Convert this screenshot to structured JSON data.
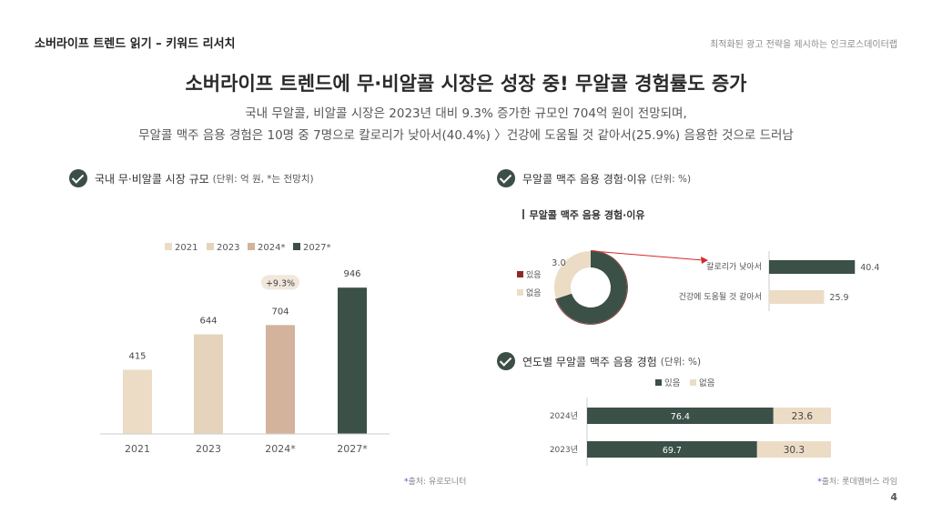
{
  "header": {
    "left_title": "소버라이프 트렌드 읽기 – 키워드 리서치",
    "right_title": "최적화된 광고 전략을 제시하는 인크로스데이터랩"
  },
  "main": {
    "title": "소버라이프 트렌드에 무·비알콜 시장은 성장 중! 무알콜 경험률도 증가",
    "subtitle_line1": "국내 무알콜, 비알콜 시장은 2023년 대비 9.3% 증가한 규모인 704억 원이 전망되며,",
    "subtitle_line2": "무알콜 맥주 음용 경험은 10명 중 7명으로 칼로리가 낮아서(40.4%) 〉건강에 도움될 것 같아서(25.9%) 음용한 것으로 드러남"
  },
  "sections": {
    "market": {
      "title": "국내 무·비알콜 시장 규모",
      "unit": "(단위: 억 원, *는 전망치)",
      "source_star": "*",
      "source": "출처: 유로모니터"
    },
    "reason": {
      "title": "무알콜 맥주 음용 경험·이유",
      "unit": "(단위: %)",
      "inner_title": "무알콜 맥주 음용 경험·이유"
    },
    "yearly": {
      "title": "연도별 무알콜 맥주 음용 경험",
      "unit": "(단위: %)",
      "source_star": "*",
      "source": "출처: 롯데멤버스 라임"
    }
  },
  "page_number": "4",
  "colors": {
    "dark_green": "#3b5047",
    "light_beige": "#ecdcc6",
    "mid_beige": "#e5d3bb",
    "tan": "#d3b39c",
    "maroon": "#8b2a2a",
    "arrow_red": "#d62828",
    "badge_bg": "#f1e7db"
  },
  "chart_data": [
    {
      "type": "bar",
      "categories": [
        "2021",
        "2023",
        "2024*",
        "2027*"
      ],
      "values": [
        415,
        644,
        704,
        946
      ],
      "legend": [
        "2021",
        "2023",
        "2024*",
        "2027*"
      ],
      "legend_placement": "top",
      "annotation": "+9.3%",
      "ylim": [
        0,
        1000
      ],
      "grid": false
    },
    {
      "type": "pie",
      "labels": [
        "있음",
        "없음"
      ],
      "values": [
        7.0,
        3.0
      ],
      "legend_placement": "left"
    },
    {
      "type": "bar",
      "orientation": "horizontal",
      "categories": [
        "칼로리가 낮아서",
        "건강에 도움될 것 같아서"
      ],
      "values": [
        40.4,
        25.9
      ],
      "xlim": [
        0,
        45
      ]
    },
    {
      "type": "bar",
      "orientation": "horizontal",
      "stacked": true,
      "categories": [
        "2024년",
        "2023년"
      ],
      "series": [
        {
          "name": "있음",
          "values": [
            76.4,
            69.7
          ]
        },
        {
          "name": "없음",
          "values": [
            23.6,
            30.3
          ]
        }
      ],
      "legend_placement": "top",
      "xlim": [
        0,
        100
      ]
    }
  ]
}
